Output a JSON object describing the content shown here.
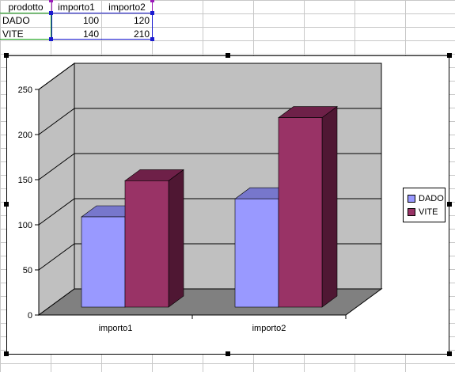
{
  "sheet": {
    "headers": [
      "prodotto",
      "importo1",
      "importo2"
    ],
    "rows": [
      {
        "label": "DADO",
        "importo1": "100",
        "importo2": "120"
      },
      {
        "label": "VITE",
        "importo1": "140",
        "importo2": "210"
      }
    ]
  },
  "colors": {
    "dado_front": "#9999ff",
    "dado_top": "#7777cc",
    "dado_side": "#5f5fb0",
    "vite_front": "#993366",
    "vite_top": "#6e2048",
    "vite_side": "#4f1733",
    "wall": "#c0c0c0",
    "floor": "#808080"
  },
  "chart_data": {
    "type": "bar",
    "categories": [
      "importo1",
      "importo2"
    ],
    "series": [
      {
        "name": "DADO",
        "values": [
          100,
          120
        ]
      },
      {
        "name": "VITE",
        "values": [
          140,
          210
        ]
      }
    ],
    "yticks": [
      "0",
      "50",
      "100",
      "150",
      "200",
      "250"
    ],
    "ylim": [
      0,
      250
    ],
    "grid": true,
    "legend": "right",
    "style": "3d-clustered-column"
  }
}
